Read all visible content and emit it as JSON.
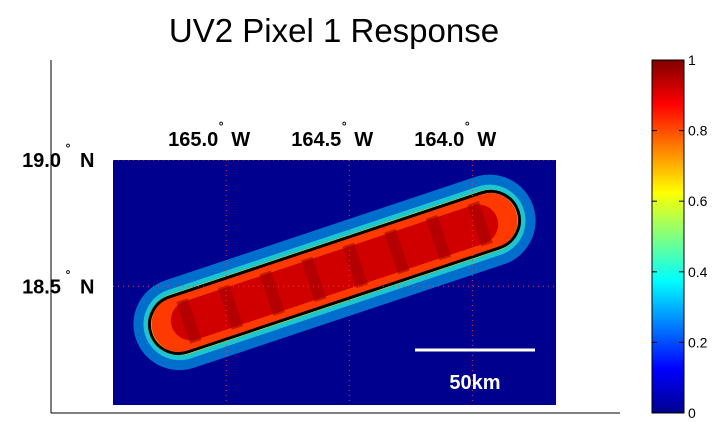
{
  "chart_data": {
    "type": "heatmap",
    "title": "UV2 Pixel 1 Response",
    "x_ticks": [
      {
        "value": -165.0,
        "number": "165.0",
        "hemisphere": "W"
      },
      {
        "value": -164.5,
        "number": "164.5",
        "hemisphere": "W"
      },
      {
        "value": -164.0,
        "number": "164.0",
        "hemisphere": "W"
      }
    ],
    "y_ticks": [
      {
        "value": 19.0,
        "number": "19.0",
        "hemisphere": "N"
      },
      {
        "value": 18.5,
        "number": "18.5",
        "hemisphere": "N"
      }
    ],
    "degree_symbol": "°",
    "xlim": [
      -165.46,
      -163.66
    ],
    "ylim": [
      18.03,
      19.0
    ],
    "grid": true,
    "colormap": "jet",
    "colorbar": {
      "min": 0,
      "max": 1,
      "ticks": [
        "0",
        "0.2",
        "0.4",
        "0.6",
        "0.8",
        "1"
      ],
      "location": "right"
    },
    "footprint": {
      "start": [
        -165.19,
        18.35
      ],
      "end": [
        -163.93,
        18.76
      ],
      "peak_response": 1.0,
      "contour_color": "#000000"
    },
    "background_color": "#00008f",
    "scale_bar": {
      "label": "50km",
      "length_km": 50
    }
  }
}
